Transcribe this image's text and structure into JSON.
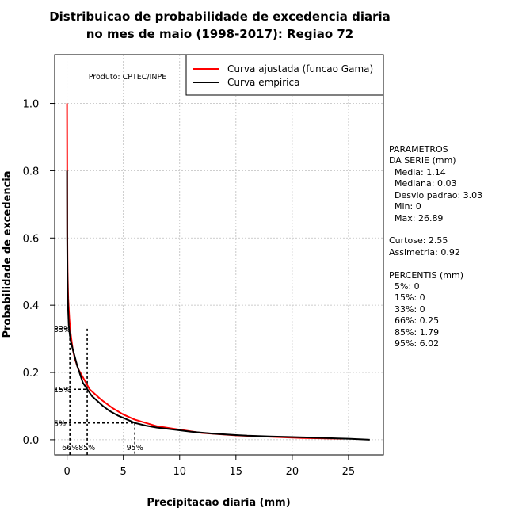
{
  "title_line1": "Distribuicao de probabilidade de excedencia diaria",
  "title_line2": "no mes de maio (1998-2017): Regiao 72",
  "product_label": "Produto: CPTEC/INPE",
  "parametros": {
    "header1": "PARAMETROS",
    "header2": "DA SERIE (mm)",
    "media": "Media: 1.14",
    "mediana": "Mediana: 0.03",
    "desvio": "Desvio padrao: 3.03",
    "min": "Min: 0",
    "max": "Max: 26.89",
    "curtose": "Curtose: 2.55",
    "assimetria": "Assimetria: 0.92"
  },
  "percentis": {
    "header": "PERCENTIS (mm)",
    "p5": "5%: 0",
    "p15": "15%: 0",
    "p33": "33%: 0",
    "p66": "66%: 0.25",
    "p85": "85%: 1.79",
    "p95": "95%: 6.02"
  },
  "chart_data": {
    "type": "line",
    "title": "Distribuicao de probabilidade de excedencia diaria no mes de maio (1998-2017): Regiao 72",
    "xlabel": "Precipitacao diaria (mm)",
    "ylabel": "Probabilidade de excedencia",
    "xlim": [
      -1.1,
      28.1
    ],
    "ylim": [
      -0.045,
      1.145
    ],
    "xticks": [
      0,
      5,
      10,
      15,
      20,
      25
    ],
    "yticks": [
      0.0,
      0.2,
      0.4,
      0.6,
      0.8,
      1.0
    ],
    "xtick_labels": [
      "0",
      "5",
      "10",
      "15",
      "20",
      "25"
    ],
    "ytick_labels": [
      "0.0",
      "0.2",
      "0.4",
      "0.6",
      "0.8",
      "1.0"
    ],
    "grid": true,
    "legend_position": "top-right",
    "series": [
      {
        "name": "Curva ajustada (funcao Gama)",
        "color": "#ff0000",
        "x": [
          0,
          0.01,
          0.02,
          0.05,
          0.1,
          0.2,
          0.3,
          0.5,
          0.7,
          1.0,
          1.5,
          2.0,
          2.5,
          3,
          4,
          5,
          6,
          7,
          8,
          10,
          12,
          15,
          18,
          21,
          24.5
        ],
        "y": [
          1.0,
          0.8,
          0.62,
          0.5,
          0.42,
          0.36,
          0.32,
          0.27,
          0.24,
          0.21,
          0.18,
          0.15,
          0.135,
          0.12,
          0.095,
          0.075,
          0.06,
          0.05,
          0.04,
          0.03,
          0.02,
          0.013,
          0.009,
          0.005,
          0.003
        ]
      },
      {
        "name": "Curva empirica",
        "color": "#000000",
        "x": [
          0,
          0.01,
          0.03,
          0.06,
          0.1,
          0.15,
          0.25,
          0.35,
          0.5,
          0.7,
          0.9,
          1.1,
          1.4,
          1.79,
          2.2,
          2.7,
          3.2,
          3.8,
          4.5,
          5.2,
          6.02,
          7,
          8,
          9,
          10,
          11,
          12,
          13,
          14,
          15,
          16,
          17,
          18,
          19,
          20,
          21,
          22,
          23,
          24,
          25,
          26.89
        ],
        "y": [
          0.8,
          0.6,
          0.5,
          0.43,
          0.38,
          0.34,
          0.31,
          0.29,
          0.27,
          0.245,
          0.22,
          0.2,
          0.17,
          0.15,
          0.13,
          0.115,
          0.1,
          0.085,
          0.072,
          0.062,
          0.05,
          0.042,
          0.036,
          0.032,
          0.028,
          0.024,
          0.021,
          0.018,
          0.016,
          0.014,
          0.012,
          0.011,
          0.01,
          0.009,
          0.008,
          0.007,
          0.006,
          0.005,
          0.004,
          0.003,
          0.0
        ]
      }
    ],
    "percentile_marks": [
      {
        "label_y": "33%",
        "prob": 0.33,
        "x": 0.0,
        "label_x": ""
      },
      {
        "label_y": "15%",
        "prob": 0.15,
        "x": 1.79,
        "label_x": ""
      },
      {
        "label_y": "5%",
        "prob": 0.05,
        "x": 6.02,
        "label_x": "95%"
      }
    ],
    "bottom_marks": [
      {
        "label": "66%",
        "x": 0.25
      },
      {
        "label": "85%",
        "x": 1.79
      }
    ]
  }
}
